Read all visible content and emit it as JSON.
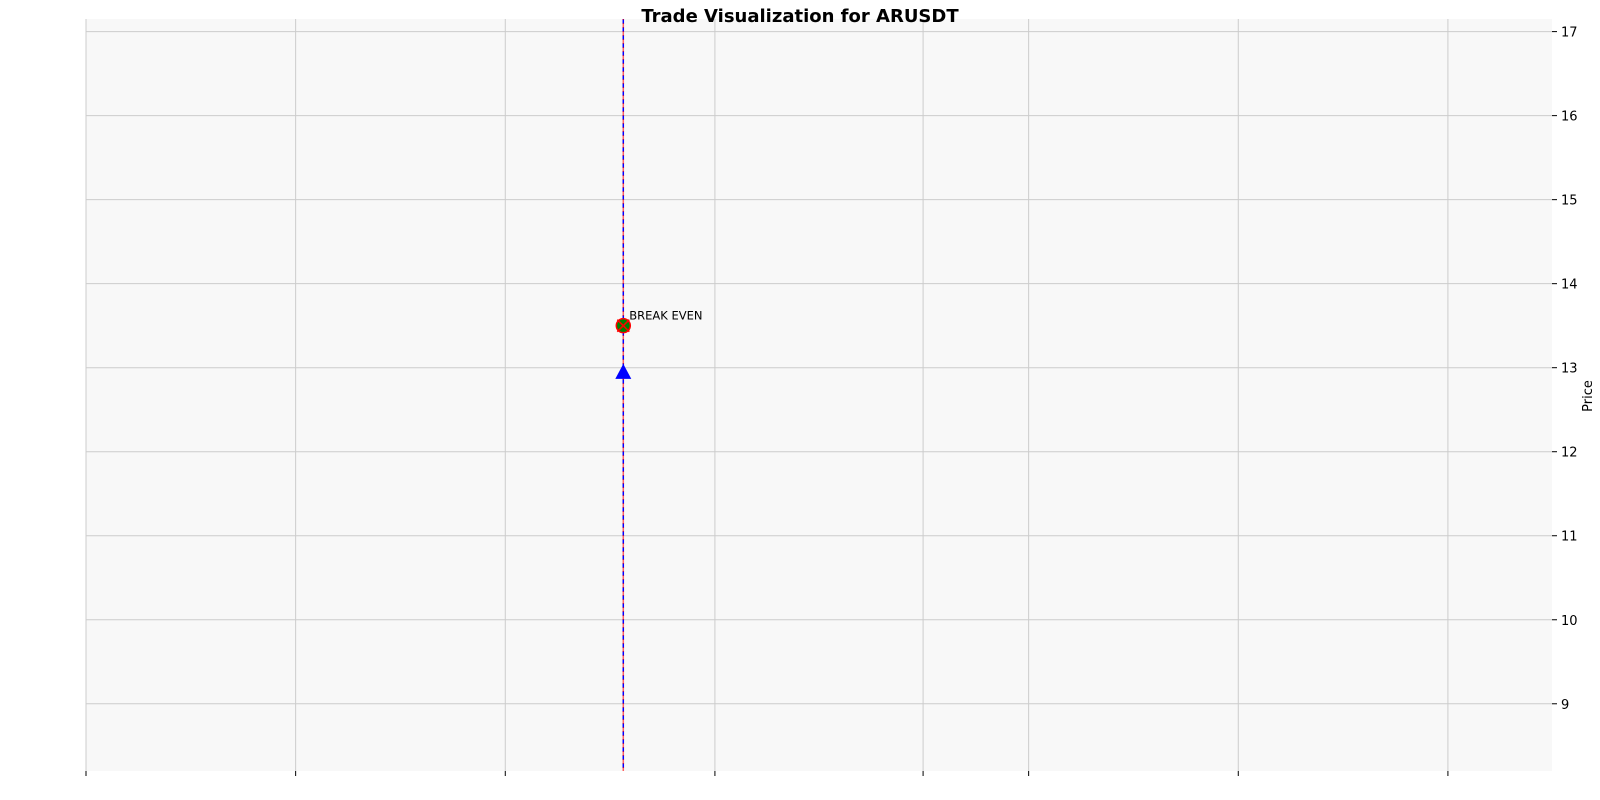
{
  "chart_data": {
    "type": "scatter",
    "title": "Trade Visualization for ARUSDT",
    "xlabel": "",
    "ylabel": "Price",
    "ylim": [
      8.2,
      17.15
    ],
    "yticks": [
      9,
      10,
      11,
      12,
      13,
      14,
      15,
      16,
      17
    ],
    "x_tick_count": 8,
    "x_tick_labels": [],
    "grid": true,
    "y_axis_side": "right",
    "vline": {
      "x_fraction": 0.3665,
      "style": "dashed",
      "colors": [
        "#0000ff",
        "#ff0000"
      ]
    },
    "markers": [
      {
        "name": "Entry",
        "shape": "triangle-up",
        "color": "#0000ff",
        "x_fraction": 0.3665,
        "y": 12.95
      },
      {
        "name": "Exit",
        "shape": "circle",
        "color": "#008000",
        "edge_color": "#ff0000",
        "x_fraction": 0.3665,
        "y": 13.5
      }
    ],
    "annotations": [
      {
        "text": "BREAK EVEN",
        "y": 13.62
      }
    ]
  }
}
